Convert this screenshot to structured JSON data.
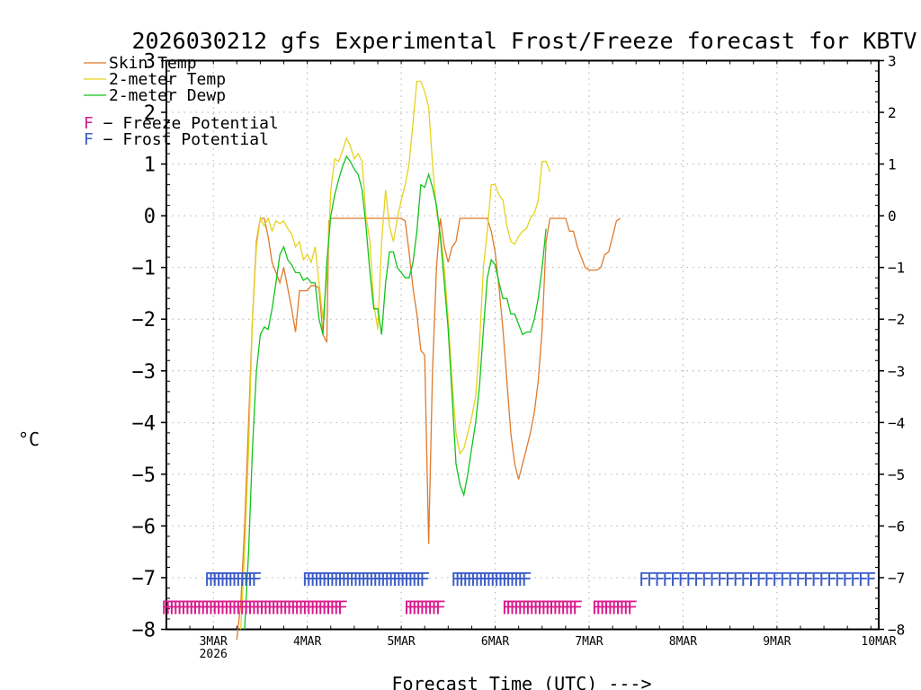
{
  "chart_data": {
    "type": "line",
    "title": "2026030212 gfs Experimental Frost/Freeze forecast for KBTV",
    "xlabel": "Forecast Time (UTC) --->",
    "ylabel": "°C",
    "ylim": [
      -8,
      3
    ],
    "xlim": [
      0,
      182
    ],
    "grid": true,
    "yticks": [
      -8,
      -7,
      -6,
      -5,
      -4,
      -3,
      -2,
      -1,
      0,
      1,
      2,
      3
    ],
    "ytick_labels": [
      "−8",
      "−7",
      "−6",
      "−5",
      "−4",
      "−3",
      "−2",
      "−1",
      "0",
      "1",
      "2",
      "3"
    ],
    "xticks": [
      {
        "x": 12,
        "label": "3MAR",
        "sublabel": "2026"
      },
      {
        "x": 36,
        "label": "4MAR",
        "sublabel": ""
      },
      {
        "x": 60,
        "label": "5MAR",
        "sublabel": ""
      },
      {
        "x": 84,
        "label": "6MAR",
        "sublabel": ""
      },
      {
        "x": 108,
        "label": "7MAR",
        "sublabel": ""
      },
      {
        "x": 132,
        "label": "8MAR",
        "sublabel": ""
      },
      {
        "x": 156,
        "label": "9MAR",
        "sublabel": ""
      },
      {
        "x": 182,
        "label": "10MAR",
        "sublabel": ""
      }
    ],
    "legend": {
      "placement": "top-left",
      "series": [
        {
          "label": "Skin Temp",
          "color": "#e07a2b"
        },
        {
          "label": "2-meter Temp",
          "color": "#e6d21e"
        },
        {
          "label": "2-meter Dewp",
          "color": "#11c41c"
        }
      ],
      "markers": [
        {
          "glyph": "F",
          "label": " − Freeze Potential",
          "color": "#d81a8c"
        },
        {
          "glyph": "F",
          "label": " − Frost Potential",
          "color": "#3b5cc8"
        }
      ]
    },
    "series": [
      {
        "name": "Skin Temp",
        "color": "#e07a2b",
        "points": [
          [
            18,
            -8.2
          ],
          [
            19,
            -7.5
          ],
          [
            20,
            -6
          ],
          [
            21,
            -4
          ],
          [
            22,
            -2
          ],
          [
            23,
            -0.5
          ],
          [
            24,
            -0.05
          ],
          [
            25,
            -0.05
          ],
          [
            26,
            -0.4
          ],
          [
            27,
            -0.9
          ],
          [
            28,
            -1.1
          ],
          [
            29,
            -1.3
          ],
          [
            30,
            -1.0
          ],
          [
            31,
            -1.4
          ],
          [
            32,
            -1.8
          ],
          [
            33,
            -2.25
          ],
          [
            34,
            -1.45
          ],
          [
            35,
            -1.45
          ],
          [
            36,
            -1.45
          ],
          [
            37,
            -1.35
          ],
          [
            38,
            -1.35
          ],
          [
            39,
            -1.4
          ],
          [
            40,
            -2.3
          ],
          [
            41,
            -2.45
          ],
          [
            41.5,
            -0.1
          ],
          [
            42,
            -0.05
          ],
          [
            44,
            -0.05
          ],
          [
            46,
            -0.05
          ],
          [
            48,
            -0.05
          ],
          [
            50,
            -0.05
          ],
          [
            52,
            -0.05
          ],
          [
            54,
            -0.05
          ],
          [
            56,
            -0.05
          ],
          [
            58,
            -0.05
          ],
          [
            60,
            -0.05
          ],
          [
            61,
            -0.1
          ],
          [
            62,
            -0.7
          ],
          [
            63,
            -1.4
          ],
          [
            64,
            -1.9
          ],
          [
            65,
            -2.6
          ],
          [
            66,
            -2.7
          ],
          [
            67,
            -6.35
          ],
          [
            68,
            -3.0
          ],
          [
            69,
            -1.0
          ],
          [
            70,
            -0.05
          ],
          [
            71,
            -0.6
          ],
          [
            72,
            -0.9
          ],
          [
            73,
            -0.6
          ],
          [
            74,
            -0.5
          ],
          [
            75,
            -0.05
          ],
          [
            78,
            -0.05
          ],
          [
            81,
            -0.05
          ],
          [
            82,
            -0.05
          ],
          [
            83,
            -0.3
          ],
          [
            84,
            -0.7
          ],
          [
            85,
            -1.4
          ],
          [
            86,
            -2.2
          ],
          [
            87,
            -3.2
          ],
          [
            88,
            -4.2
          ],
          [
            89,
            -4.8
          ],
          [
            90,
            -5.1
          ],
          [
            91,
            -4.8
          ],
          [
            92,
            -4.5
          ],
          [
            93,
            -4.2
          ],
          [
            94,
            -3.8
          ],
          [
            95,
            -3.2
          ],
          [
            96,
            -2.2
          ],
          [
            97,
            -0.5
          ],
          [
            98,
            -0.05
          ],
          [
            100,
            -0.05
          ],
          [
            102,
            -0.05
          ],
          [
            103,
            -0.3
          ],
          [
            104,
            -0.3
          ],
          [
            105,
            -0.6
          ],
          [
            106,
            -0.8
          ],
          [
            107,
            -1.0
          ],
          [
            108,
            -1.05
          ],
          [
            109,
            -1.05
          ],
          [
            110,
            -1.05
          ],
          [
            111,
            -1.0
          ],
          [
            112,
            -0.75
          ],
          [
            113,
            -0.7
          ],
          [
            114,
            -0.4
          ],
          [
            115,
            -0.1
          ],
          [
            116,
            -0.05
          ]
        ]
      },
      {
        "name": "2-meter Temp",
        "color": "#e6d21e",
        "points": [
          [
            19,
            -8.0
          ],
          [
            20,
            -6.5
          ],
          [
            21,
            -4.5
          ],
          [
            22,
            -2.0
          ],
          [
            23,
            -0.6
          ],
          [
            24,
            -0.05
          ],
          [
            25,
            -0.2
          ],
          [
            26,
            -0.05
          ],
          [
            27,
            -0.3
          ],
          [
            28,
            -0.1
          ],
          [
            29,
            -0.15
          ],
          [
            30,
            -0.1
          ],
          [
            31,
            -0.25
          ],
          [
            32,
            -0.35
          ],
          [
            33,
            -0.6
          ],
          [
            34,
            -0.5
          ],
          [
            35,
            -0.85
          ],
          [
            36,
            -0.75
          ],
          [
            37,
            -0.9
          ],
          [
            38,
            -0.6
          ],
          [
            39,
            -1.3
          ],
          [
            40,
            -2.0
          ],
          [
            41,
            -1.2
          ],
          [
            42,
            0.5
          ],
          [
            43,
            1.1
          ],
          [
            44,
            1.05
          ],
          [
            45,
            1.25
          ],
          [
            46,
            1.5
          ],
          [
            47,
            1.35
          ],
          [
            48,
            1.1
          ],
          [
            49,
            1.2
          ],
          [
            50,
            1.05
          ],
          [
            51,
            0.0
          ],
          [
            52,
            -0.5
          ],
          [
            53,
            -1.7
          ],
          [
            54,
            -2.2
          ],
          [
            55,
            -0.5
          ],
          [
            56,
            0.5
          ],
          [
            57,
            -0.2
          ],
          [
            58,
            -0.5
          ],
          [
            59,
            -0.05
          ],
          [
            60,
            0.3
          ],
          [
            61,
            0.6
          ],
          [
            62,
            1.0
          ],
          [
            63,
            1.8
          ],
          [
            64,
            2.6
          ],
          [
            65,
            2.6
          ],
          [
            66,
            2.4
          ],
          [
            67,
            2.1
          ],
          [
            68,
            1.0
          ],
          [
            69,
            0.1
          ],
          [
            70,
            -0.35
          ],
          [
            71,
            -1.0
          ],
          [
            72,
            -2.0
          ],
          [
            73,
            -3.2
          ],
          [
            74,
            -4.2
          ],
          [
            75,
            -4.6
          ],
          [
            76,
            -4.5
          ],
          [
            77,
            -4.2
          ],
          [
            78,
            -3.9
          ],
          [
            79,
            -3.5
          ],
          [
            80,
            -2.5
          ],
          [
            81,
            -1.0
          ],
          [
            82,
            -0.3
          ],
          [
            83,
            0.6
          ],
          [
            84,
            0.6
          ],
          [
            85,
            0.4
          ],
          [
            86,
            0.3
          ],
          [
            87,
            -0.2
          ],
          [
            88,
            -0.5
          ],
          [
            89,
            -0.55
          ],
          [
            90,
            -0.4
          ],
          [
            91,
            -0.3
          ],
          [
            92,
            -0.25
          ],
          [
            93,
            -0.05
          ],
          [
            94,
            0.05
          ],
          [
            95,
            0.3
          ],
          [
            96,
            1.05
          ],
          [
            97,
            1.05
          ],
          [
            98,
            0.85
          ]
        ]
      },
      {
        "name": "2-meter Dewp",
        "color": "#11c41c",
        "points": [
          [
            20,
            -8.0
          ],
          [
            21,
            -6.5
          ],
          [
            22,
            -4.5
          ],
          [
            23,
            -3.0
          ],
          [
            24,
            -2.3
          ],
          [
            25,
            -2.15
          ],
          [
            26,
            -2.2
          ],
          [
            27,
            -1.8
          ],
          [
            28,
            -1.3
          ],
          [
            29,
            -0.75
          ],
          [
            30,
            -0.6
          ],
          [
            31,
            -0.85
          ],
          [
            32,
            -0.95
          ],
          [
            33,
            -1.1
          ],
          [
            34,
            -1.1
          ],
          [
            35,
            -1.25
          ],
          [
            36,
            -1.2
          ],
          [
            37,
            -1.3
          ],
          [
            38,
            -1.3
          ],
          [
            39,
            -2.0
          ],
          [
            40,
            -2.3
          ],
          [
            41,
            -0.9
          ],
          [
            42,
            0.0
          ],
          [
            43,
            0.4
          ],
          [
            44,
            0.7
          ],
          [
            45,
            0.95
          ],
          [
            46,
            1.15
          ],
          [
            47,
            1.05
          ],
          [
            48,
            0.9
          ],
          [
            49,
            0.8
          ],
          [
            50,
            0.5
          ],
          [
            51,
            -0.2
          ],
          [
            52,
            -1.1
          ],
          [
            53,
            -1.8
          ],
          [
            54,
            -1.8
          ],
          [
            55,
            -2.3
          ],
          [
            56,
            -1.3
          ],
          [
            57,
            -0.7
          ],
          [
            58,
            -0.7
          ],
          [
            59,
            -1.0
          ],
          [
            60,
            -1.1
          ],
          [
            61,
            -1.2
          ],
          [
            62,
            -1.2
          ],
          [
            63,
            -0.9
          ],
          [
            64,
            -0.3
          ],
          [
            65,
            0.6
          ],
          [
            66,
            0.55
          ],
          [
            67,
            0.8
          ],
          [
            68,
            0.55
          ],
          [
            69,
            0.2
          ],
          [
            70,
            -0.4
          ],
          [
            71,
            -1.3
          ],
          [
            72,
            -2.2
          ],
          [
            73,
            -3.5
          ],
          [
            74,
            -4.8
          ],
          [
            75,
            -5.2
          ],
          [
            76,
            -5.4
          ],
          [
            77,
            -5.0
          ],
          [
            78,
            -4.5
          ],
          [
            79,
            -4.0
          ],
          [
            80,
            -3.3
          ],
          [
            81,
            -2.2
          ],
          [
            82,
            -1.2
          ],
          [
            83,
            -0.85
          ],
          [
            84,
            -0.95
          ],
          [
            85,
            -1.3
          ],
          [
            86,
            -1.6
          ],
          [
            87,
            -1.6
          ],
          [
            88,
            -1.9
          ],
          [
            89,
            -1.9
          ],
          [
            90,
            -2.1
          ],
          [
            91,
            -2.3
          ],
          [
            92,
            -2.25
          ],
          [
            93,
            -2.25
          ],
          [
            94,
            -2.0
          ],
          [
            95,
            -1.6
          ],
          [
            96,
            -1.0
          ],
          [
            97,
            -0.25
          ]
        ]
      }
    ],
    "frost_marks": {
      "glyph": "F",
      "y": -7.0,
      "color": "#3b5cc8",
      "x": [
        11,
        12,
        13,
        14,
        15,
        16,
        17,
        18,
        19,
        20,
        21,
        22,
        23,
        36,
        37,
        38,
        39,
        40,
        41,
        42,
        43,
        44,
        45,
        46,
        47,
        48,
        49,
        50,
        51,
        52,
        53,
        54,
        55,
        56,
        57,
        58,
        59,
        60,
        61,
        62,
        63,
        64,
        65,
        66,
        74,
        75,
        76,
        77,
        78,
        79,
        80,
        81,
        82,
        83,
        84,
        85,
        86,
        87,
        88,
        89,
        90,
        91,
        92,
        122,
        124,
        126,
        128,
        130,
        132,
        134,
        136,
        138,
        140,
        142,
        144,
        146,
        148,
        150,
        152,
        154,
        156,
        158,
        160,
        162,
        164,
        166,
        168,
        170,
        172,
        174,
        176,
        178,
        180
      ]
    },
    "freeze_marks": {
      "glyph": "F",
      "y": -7.55,
      "color": "#d81a8c",
      "x": [
        0,
        1,
        2,
        3,
        4,
        5,
        6,
        7,
        8,
        9,
        10,
        11,
        12,
        13,
        14,
        15,
        16,
        17,
        18,
        19,
        20,
        21,
        22,
        23,
        24,
        25,
        26,
        27,
        28,
        29,
        30,
        31,
        32,
        33,
        34,
        35,
        36,
        37,
        38,
        39,
        40,
        41,
        42,
        43,
        44,
        45,
        62,
        63,
        64,
        65,
        66,
        67,
        68,
        69,
        70,
        87,
        88,
        89,
        90,
        91,
        92,
        93,
        94,
        95,
        96,
        97,
        98,
        99,
        100,
        101,
        102,
        103,
        104,
        105,
        110,
        111,
        112,
        113,
        114,
        115,
        116,
        117,
        118,
        119
      ]
    }
  }
}
